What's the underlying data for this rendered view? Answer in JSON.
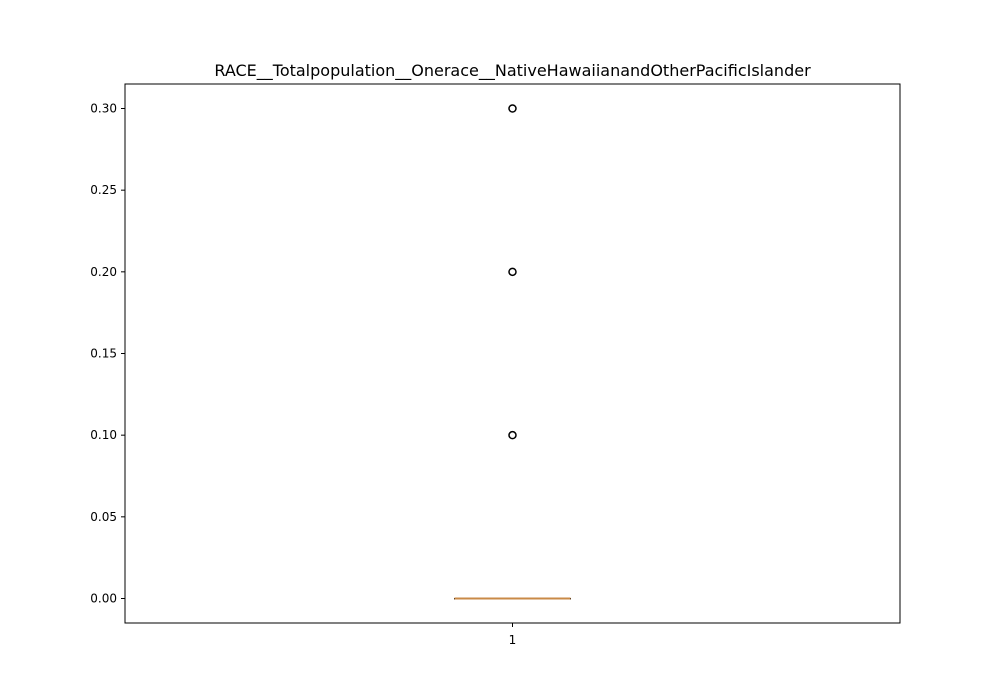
{
  "chart_data": {
    "type": "box",
    "title": "RACE__Totalpopulation__Onerace__NativeHawaiianandOtherPacificIslander",
    "xlabel": "",
    "ylabel": "",
    "categories": [
      "1"
    ],
    "yticks": [
      "0.00",
      "0.05",
      "0.10",
      "0.15",
      "0.20",
      "0.25",
      "0.30"
    ],
    "ylim": [
      -0.015,
      0.315
    ],
    "grid": false,
    "box": {
      "q1": 0.0,
      "median": 0.0,
      "q3": 0.0,
      "whisker_low": 0.0,
      "whisker_high": 0.0,
      "outliers": [
        0.1,
        0.2,
        0.3
      ]
    },
    "colors": {
      "box": "#000000",
      "median": "#c98a47",
      "flier": "#000000",
      "axes": "#000000"
    }
  }
}
